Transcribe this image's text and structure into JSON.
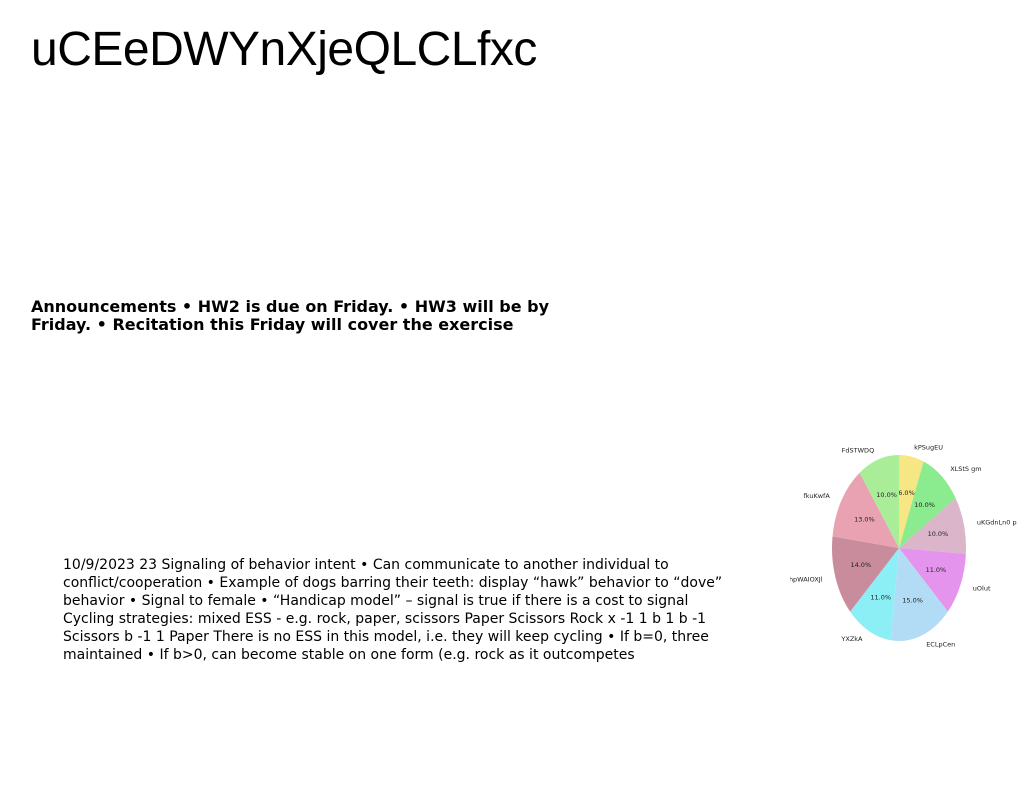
{
  "title": "uCEeDWYnXjeQLCLfxc",
  "announcements": "Announcements • HW2 is due on Friday. • HW3 will be by Friday. • Recitation this Friday will cover the exercise",
  "notes": "10/9/2023 23 Signaling of behavior intent • Can communicate to another individual to conflict/cooperation • Example of dogs barring their teeth: display “hawk” behavior to “dove” behavior • Signal to female • “Handicap model” – signal is true if there is a cost to signal Cycling strategies: mixed ESS - e.g. rock, paper, scissors Paper Scissors Rock x -1 1 b 1 b -1 Scissors b -1 1 Paper There is no ESS in this model, i.e. they will keep cycling • If b=0, three maintained • If b>0, can become stable on one form (e.g. rock as it outcompetes",
  "chart_data": {
    "type": "pie",
    "start_angle_deg": 90,
    "direction": "clockwise",
    "slices": [
      {
        "label": "kPSugEU",
        "value": 6.0,
        "pct_label": "6.0%",
        "color": "#f6e784"
      },
      {
        "label": "XLStS gm",
        "value": 10.0,
        "pct_label": "10.0%",
        "color": "#8aeb8f"
      },
      {
        "label": "uKGdnLn0 p",
        "value": 10.0,
        "pct_label": "10.0%",
        "color": "#dbb5c9"
      },
      {
        "label": "uOlut",
        "value": 11.0,
        "pct_label": "11.0%",
        "color": "#e594ee"
      },
      {
        "label": "ECLpCen",
        "value": 15.0,
        "pct_label": "15.0%",
        "color": "#b2dcf5"
      },
      {
        "label": "YXZkA",
        "value": 11.0,
        "pct_label": "11.0%",
        "color": "#8deff6"
      },
      {
        "label": "hpWAIOXJl",
        "value": 14.0,
        "pct_label": "14.0%",
        "color": "#c98c9c"
      },
      {
        "label": "fkuKwfA",
        "value": 13.0,
        "pct_label": "13.0%",
        "color": "#e8a2b2"
      },
      {
        "label": "FdSTWDQ",
        "value": 10.0,
        "pct_label": "10.0%",
        "color": "#a9ed99"
      }
    ]
  }
}
